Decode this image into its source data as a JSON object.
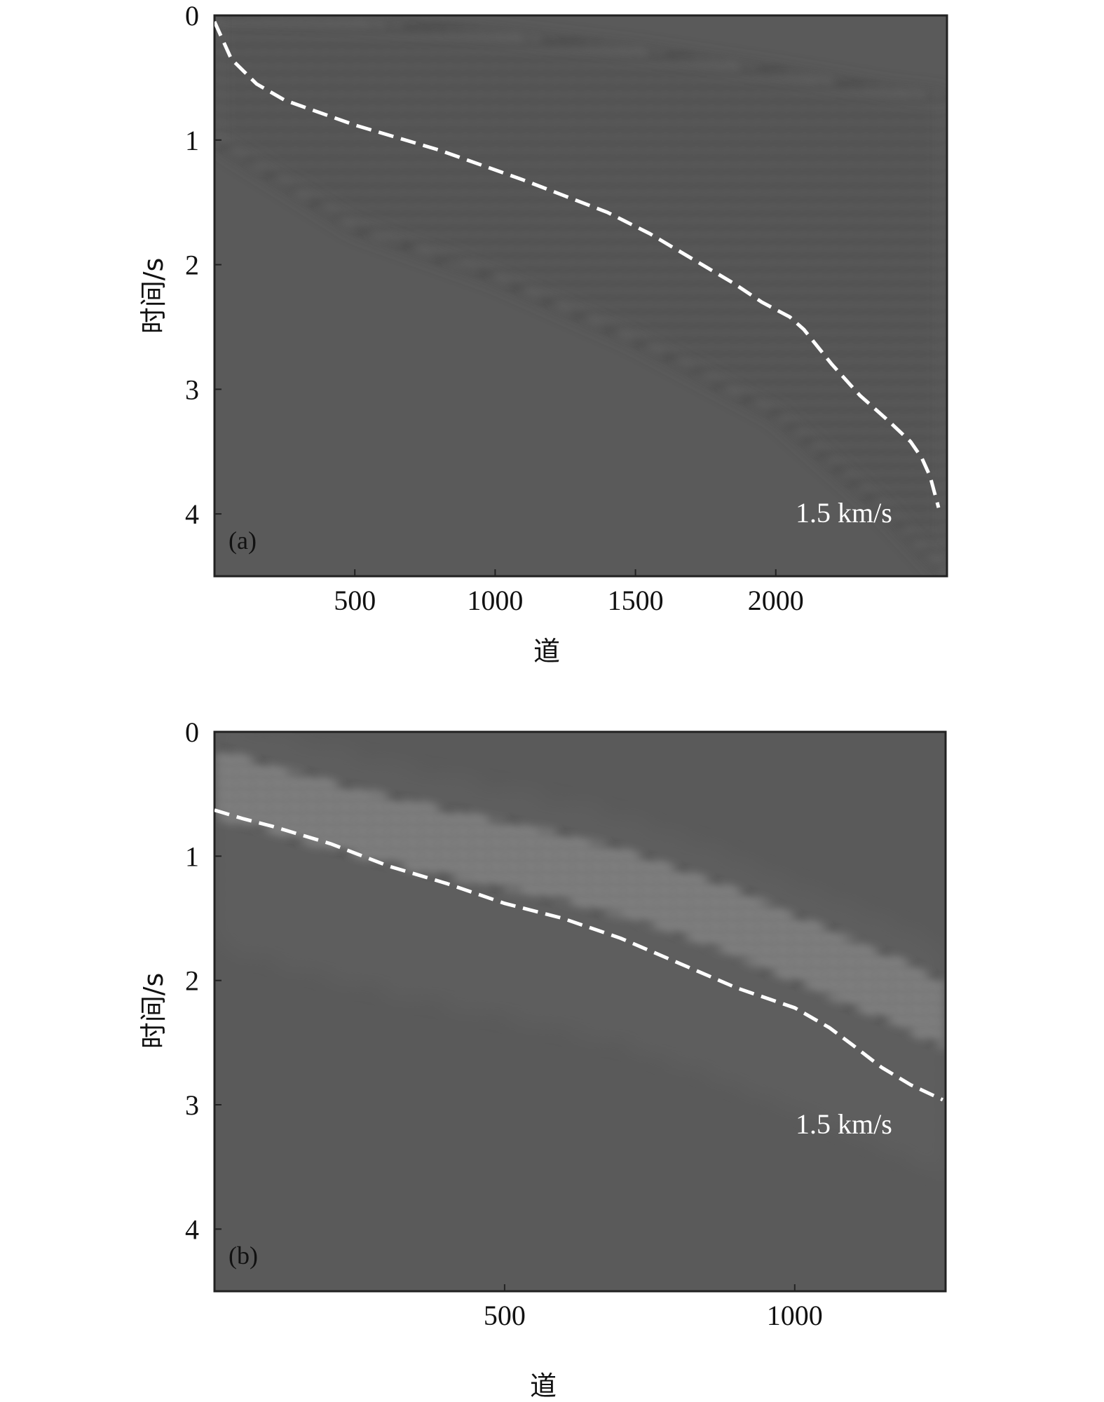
{
  "chart_data": [
    {
      "type": "heatmap",
      "panel_label": "(a)",
      "xlabel": "道",
      "ylabel": "时间/s",
      "xlim": [
        0,
        2610
      ],
      "ylim": [
        4.5,
        0
      ],
      "x_ticks": [
        500,
        1000,
        1500,
        2000
      ],
      "y_ticks": [
        0,
        1,
        2,
        3,
        4
      ],
      "background_color": "#5a5a5a",
      "annotation": "1.5 km/s",
      "dashed_curve": {
        "name": "1.5 km/s",
        "x": [
          0,
          60,
          150,
          250,
          350,
          500,
          650,
          800,
          950,
          1100,
          1250,
          1400,
          1550,
          1700,
          1850,
          1950,
          2050,
          2100,
          2200,
          2300,
          2400,
          2480,
          2520,
          2550,
          2580
        ],
        "y": [
          0.05,
          0.35,
          0.55,
          0.68,
          0.76,
          0.88,
          0.98,
          1.08,
          1.2,
          1.32,
          1.45,
          1.58,
          1.75,
          1.95,
          2.15,
          2.3,
          2.42,
          2.52,
          2.8,
          3.05,
          3.25,
          3.42,
          3.55,
          3.7,
          3.95
        ]
      },
      "wavefield": {
        "onset_x": [
          0,
          500,
          1000,
          1500,
          2000,
          2400,
          2610
        ],
        "onset_y": [
          0.0,
          0.05,
          0.15,
          0.28,
          0.45,
          0.6,
          0.65
        ],
        "tail_x": [
          0,
          500,
          1000,
          1500,
          2000,
          2400,
          2610
        ],
        "tail_y": [
          1.0,
          1.7,
          2.1,
          2.6,
          3.2,
          4.0,
          4.5
        ]
      }
    },
    {
      "type": "heatmap",
      "panel_label": "(b)",
      "xlabel": "道",
      "ylabel": "时间/s",
      "xlim": [
        0,
        1260
      ],
      "ylim": [
        4.5,
        0
      ],
      "x_ticks": [
        500,
        1000
      ],
      "y_ticks": [
        0,
        1,
        2,
        3,
        4
      ],
      "background_color": "#5a5a5a",
      "annotation": "1.5 km/s",
      "dashed_curve": {
        "name": "1.5 km/s",
        "x": [
          0,
          50,
          100,
          200,
          300,
          400,
          500,
          600,
          700,
          800,
          900,
          1000,
          1060,
          1100,
          1150,
          1200,
          1255
        ],
        "y": [
          0.63,
          0.7,
          0.76,
          0.9,
          1.08,
          1.22,
          1.38,
          1.5,
          1.66,
          1.86,
          2.06,
          2.22,
          2.38,
          2.52,
          2.7,
          2.84,
          2.96
        ]
      },
      "wavefield": {
        "band_x": [
          0,
          100,
          200,
          300,
          400,
          500,
          600,
          700,
          800,
          900,
          1000,
          1100,
          1200,
          1260
        ],
        "band_center_y": [
          0.42,
          0.55,
          0.68,
          0.8,
          0.9,
          1.0,
          1.1,
          1.22,
          1.38,
          1.55,
          1.75,
          1.95,
          2.15,
          2.3
        ]
      }
    }
  ]
}
